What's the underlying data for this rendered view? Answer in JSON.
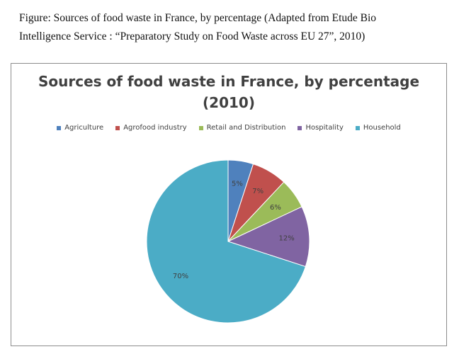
{
  "figure": {
    "caption_line1": "Figure: Sources of food waste in France, by percentage (Adapted from Etude Bio",
    "caption_line2": "Intelligence Service : “Preparatory Study on Food Waste across EU 27”, 2010)"
  },
  "chart_data": {
    "type": "pie",
    "title_line1": "Sources of food waste in France, by percentage",
    "title_line2": "(2010)",
    "legend_position": "top",
    "categories": [
      "Agriculture",
      "Agrofood industry",
      "Retail and Distribution",
      "Hospitality",
      "Household"
    ],
    "values": [
      5,
      7,
      6,
      12,
      70
    ],
    "labels": [
      "5%",
      "7%",
      "6%",
      "12%",
      "70%"
    ],
    "colors": [
      "#4f81bd",
      "#c0504d",
      "#9bbb59",
      "#8064a2",
      "#4bacc6"
    ]
  }
}
